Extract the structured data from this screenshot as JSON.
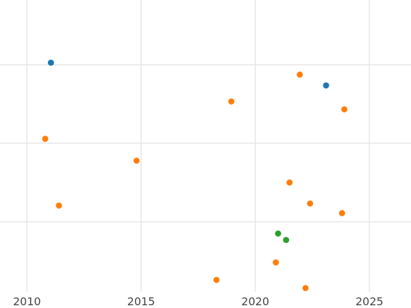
{
  "chart_data": {
    "type": "scatter",
    "title": "",
    "xlabel": "",
    "ylabel": "",
    "xlim": [
      2009,
      2027
    ],
    "ylim": [
      0,
      1
    ],
    "grid": true,
    "x_ticks": [
      2010,
      2015,
      2020,
      2025
    ],
    "x_tick_labels": [
      "2010",
      "2015",
      "2020",
      "2025"
    ],
    "y_gridlines": [
      0.239,
      0.509,
      0.778
    ],
    "series": [
      {
        "color": "#1f77b4",
        "points": [
          {
            "x": 2011.05,
            "y": 0.785
          },
          {
            "x": 2023.1,
            "y": 0.707
          }
        ]
      },
      {
        "color": "#ff7f0e",
        "points": [
          {
            "x": 2010.8,
            "y": 0.524
          },
          {
            "x": 2011.4,
            "y": 0.295
          },
          {
            "x": 2014.8,
            "y": 0.449
          },
          {
            "x": 2018.3,
            "y": 0.04
          },
          {
            "x": 2018.95,
            "y": 0.652
          },
          {
            "x": 2020.9,
            "y": 0.1
          },
          {
            "x": 2021.5,
            "y": 0.374
          },
          {
            "x": 2021.95,
            "y": 0.744
          },
          {
            "x": 2022.2,
            "y": 0.012
          },
          {
            "x": 2022.4,
            "y": 0.302
          },
          {
            "x": 2023.8,
            "y": 0.269
          },
          {
            "x": 2023.9,
            "y": 0.625
          }
        ]
      },
      {
        "color": "#2ca02c",
        "points": [
          {
            "x": 2021.0,
            "y": 0.199
          },
          {
            "x": 2021.35,
            "y": 0.177
          }
        ]
      }
    ]
  }
}
